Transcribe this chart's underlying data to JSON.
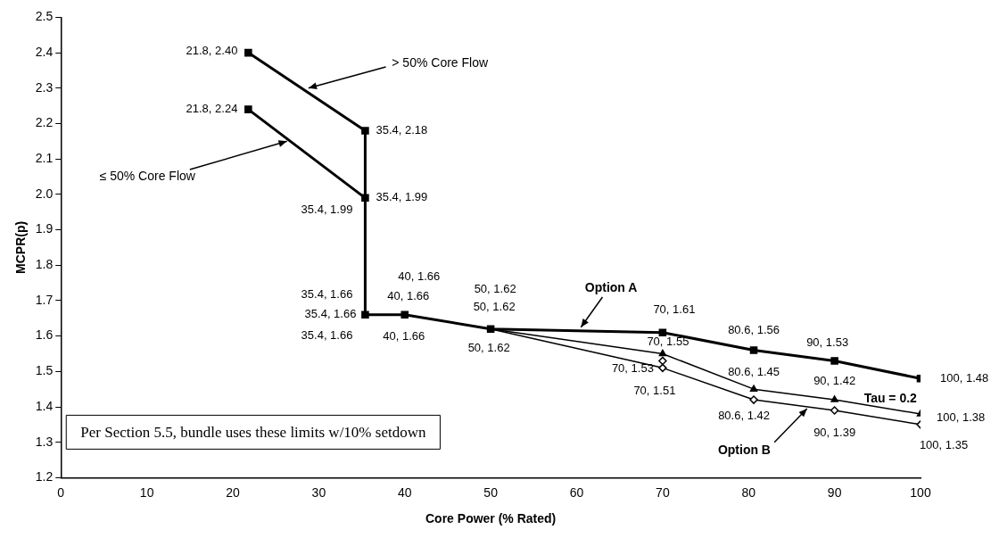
{
  "chart_data": {
    "type": "line",
    "xlabel": "Core Power (% Rated)",
    "ylabel": "MCPR(p)",
    "xlim": [
      0,
      100
    ],
    "xticks": [
      0,
      10,
      20,
      30,
      40,
      50,
      60,
      70,
      80,
      90,
      100
    ],
    "ylim": [
      1.2,
      2.5
    ],
    "yticks": [
      1.2,
      1.3,
      1.4,
      1.5,
      1.6,
      1.7,
      1.8,
      1.9,
      {
        "value": 2.0,
        "label": "2.0"
      },
      2.1,
      2.2,
      2.3,
      2.4,
      2.5
    ],
    "grid": false,
    "legend": false,
    "annotations": [
      "Per Section 5.5, bundle uses these limits w/10% setdown"
    ],
    "series": [
      {
        "name": "> 50% Core Flow",
        "color": "#000000",
        "type": "line",
        "marker": "square",
        "x": [
          21.8,
          35.4,
          35.4
        ],
        "values": [
          2.4,
          2.18,
          1.99
        ],
        "value_labels": [
          "21.8, 2.40",
          "35.4, 2.18",
          "35.4, 1.99"
        ]
      },
      {
        "name": "≤ 50% Core Flow",
        "color": "#000000",
        "type": "line",
        "marker": "square",
        "x": [
          21.8,
          35.4,
          35.4
        ],
        "values": [
          2.24,
          1.99,
          1.66
        ],
        "value_labels": [
          "21.8, 2.24",
          "35.4, 1.99",
          null
        ]
      },
      {
        "name": "Option A",
        "color": "#000000",
        "type": "line",
        "marker": "square",
        "x": [
          35.4,
          40,
          50,
          70,
          80.6,
          90,
          100
        ],
        "values": [
          1.66,
          1.66,
          1.62,
          1.61,
          1.56,
          1.53,
          1.48
        ],
        "value_labels": [
          "35.4, 1.66",
          "40, 1.66",
          "50, 1.62",
          "70, 1.61",
          "80.6, 1.56",
          "90, 1.53",
          "100, 1.48"
        ]
      },
      {
        "name": "Tau = 0.2",
        "color": "#000000",
        "type": "line",
        "marker": "triangle",
        "x": [
          35.4,
          40,
          50,
          70,
          80.6,
          90,
          100
        ],
        "values": [
          1.66,
          1.66,
          1.62,
          1.55,
          1.45,
          1.42,
          1.38
        ],
        "value_labels": [
          "35.4, 1.66",
          "40, 1.66",
          "50, 1.62",
          "70, 1.55",
          "80.6, 1.45",
          "90, 1.42",
          "100, 1.38"
        ]
      },
      {
        "name": "Option B",
        "color": "#000000",
        "type": "line",
        "marker": "diamond",
        "x": [
          35.4,
          40,
          50,
          70,
          80.6,
          90,
          100
        ],
        "values": [
          1.66,
          1.66,
          1.62,
          1.51,
          1.42,
          1.39,
          1.35
        ],
        "value_labels": [
          "35.4, 1.66",
          "40, 1.66",
          "50, 1.62",
          "70, 1.51",
          "80.6, 1.42",
          "90, 1.39",
          "100, 1.35"
        ]
      },
      {
        "color": "#000000",
        "type": "scatter",
        "marker": "diamond",
        "x": [
          70
        ],
        "values": [
          1.53
        ],
        "value_labels": [
          "70, 1.53"
        ]
      }
    ]
  }
}
